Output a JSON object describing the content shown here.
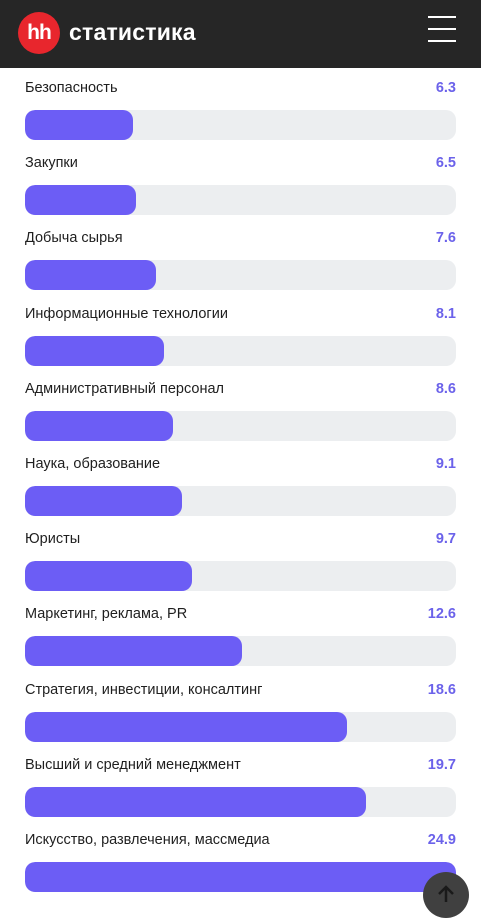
{
  "header": {
    "logo_text": "hh",
    "brand": "статистика",
    "menu_icon": "hamburger-menu-icon"
  },
  "colors": {
    "header_bg": "#262626",
    "logo_red": "#e8262d",
    "bar_fill": "#6c5df5",
    "bar_track": "#eceef0",
    "value_text": "#6b62ea"
  },
  "max_value": 24.9,
  "items": [
    {
      "label": "Безопасность",
      "value": "6.3"
    },
    {
      "label": "Закупки",
      "value": "6.5"
    },
    {
      "label": "Добыча сырья",
      "value": "7.6"
    },
    {
      "label": "Информационные технологии",
      "value": "8.1"
    },
    {
      "label": "Административный персонал",
      "value": "8.6"
    },
    {
      "label": "Наука, образование",
      "value": "9.1"
    },
    {
      "label": "Юристы",
      "value": "9.7"
    },
    {
      "label": "Маркетинг, реклама, PR",
      "value": "12.6"
    },
    {
      "label": "Стратегия, инвестиции, консалтинг",
      "value": "18.6"
    },
    {
      "label": "Высший и средний менеджмент",
      "value": "19.7"
    },
    {
      "label": "Искусство, развлечения, массмедиа",
      "value": "24.9"
    }
  ],
  "scroll_top_icon": "arrow-up-icon"
}
